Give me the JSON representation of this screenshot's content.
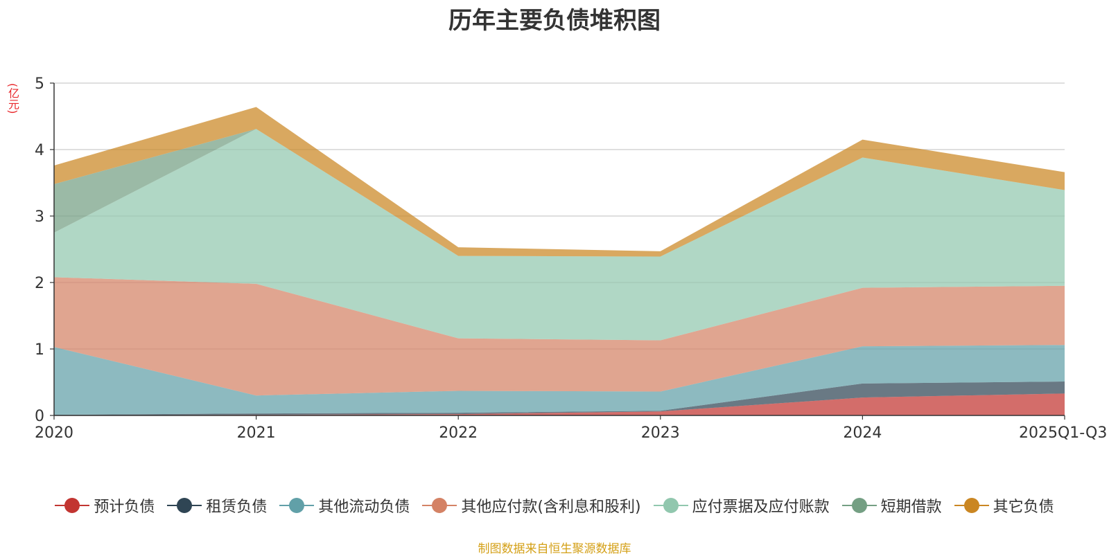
{
  "chart_data": {
    "type": "area",
    "stacked": true,
    "title": "历年主要负债堆积图",
    "ylabel": "(亿元)",
    "xlabel": "",
    "categories": [
      "2020",
      "2021",
      "2022",
      "2023",
      "2024",
      "2025Q1-Q3"
    ],
    "ylim": [
      0,
      5
    ],
    "yticks": [
      0,
      1,
      2,
      3,
      4,
      5
    ],
    "grid": true,
    "legend_position": "bottom",
    "series": [
      {
        "name": "预计负债",
        "color": "#c23531",
        "values": [
          0.0,
          0.01,
          0.02,
          0.06,
          0.27,
          0.33
        ]
      },
      {
        "name": "租赁负债",
        "color": "#2f4554",
        "values": [
          0.01,
          0.02,
          0.02,
          0.01,
          0.21,
          0.18
        ]
      },
      {
        "name": "其他流动负债",
        "color": "#61a0a8",
        "values": [
          1.02,
          0.27,
          0.33,
          0.29,
          0.56,
          0.55
        ]
      },
      {
        "name": "其他应付款(含利息和股利)",
        "color": "#d48265",
        "values": [
          1.05,
          1.68,
          0.79,
          0.77,
          0.88,
          0.89
        ]
      },
      {
        "name": "应付票据及应付账款",
        "color": "#91c7ae",
        "values": [
          0.67,
          2.33,
          1.24,
          1.26,
          1.96,
          1.44
        ]
      },
      {
        "name": "短期借款",
        "color": "#749f83",
        "values": [
          0.73,
          0.0,
          0.0,
          0.0,
          0.0,
          0.0
        ]
      },
      {
        "name": "其它负债",
        "color": "#ca8622",
        "values": [
          0.28,
          0.33,
          0.13,
          0.08,
          0.27,
          0.27
        ]
      }
    ]
  },
  "source_note": "制图数据来自恒生聚源数据库"
}
